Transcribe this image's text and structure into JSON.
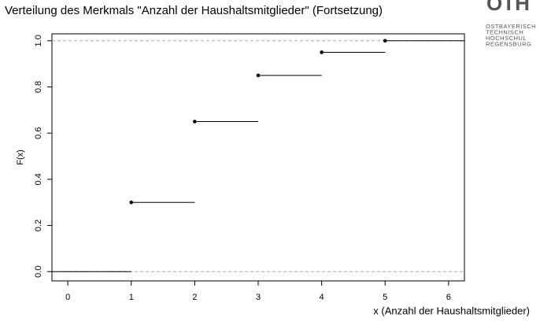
{
  "chart_data": {
    "type": "step",
    "title": "Verteilung des Merkmals \"Anzahl der Haushaltsmitglieder\" (Fortsetzung)",
    "logo": [
      "OSTBAYERISCH",
      "TECHNISCH",
      "HOCHSCHUL",
      "REGENSBURG"
    ],
    "x_label": "x (Anzahl der Haushaltsmitglieder)",
    "y_label": "F(x)",
    "x": [
      1,
      2,
      3,
      4,
      5
    ],
    "values": [
      0.3,
      0.65,
      0.85,
      0.95,
      1.0
    ],
    "color": "#000000",
    "hlines": [
      0,
      1
    ],
    "xlim": [
      -0.25,
      6.25
    ],
    "ylim": [
      -0.04,
      1.03
    ],
    "xticks": [
      0,
      1,
      2,
      3,
      4,
      5,
      6
    ],
    "yticks": [
      {
        "value": 0,
        "label": "0.0"
      },
      {
        "value": 0.2,
        "label": "0.2"
      },
      {
        "value": 0.4,
        "label": "0.4"
      },
      {
        "value": 0.6,
        "label": "0.6"
      },
      {
        "value": 0.8,
        "label": "0.8"
      },
      {
        "value": 1,
        "label": "1.0"
      }
    ]
  }
}
